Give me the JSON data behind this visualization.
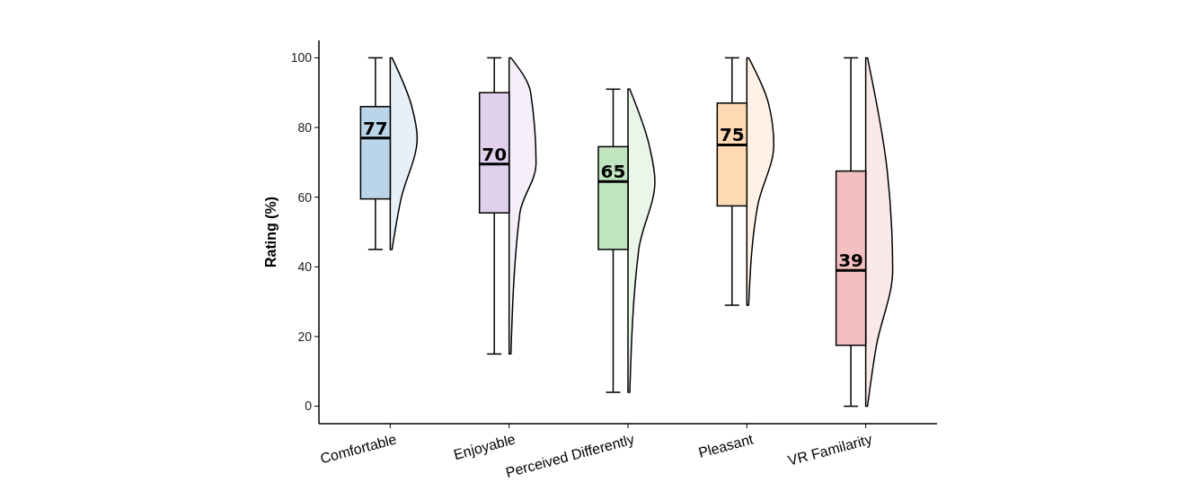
{
  "chart_data": {
    "type": "box",
    "ylabel": "Rating (%)",
    "categories": [
      "Comfortable",
      "Enjoyable",
      "Perceived Differently",
      "Pleasant",
      "VR Familarity"
    ],
    "boxes": [
      {
        "low": 45,
        "q1": 59.5,
        "median": 77,
        "q3": 86,
        "high": 100
      },
      {
        "low": 15,
        "q1": 55.5,
        "median": 69.5,
        "q3": 90,
        "high": 100
      },
      {
        "low": 4,
        "q1": 45,
        "median": 64.5,
        "q3": 74.5,
        "high": 91
      },
      {
        "low": 29,
        "q1": 57.5,
        "median": 75,
        "q3": 87,
        "high": 100
      },
      {
        "low": 0,
        "q1": 17.5,
        "median": 39,
        "q3": 67.5,
        "high": 100
      }
    ],
    "colors": [
      "#bad5ea",
      "#e0d0ec",
      "#c1e4c1",
      "#fed9b3",
      "#f4bfbf"
    ],
    "value_labels": [
      "77",
      "70",
      "65",
      "75",
      "39"
    ],
    "ylim": [
      -5,
      105
    ],
    "yticks": [
      0,
      20,
      40,
      60,
      80,
      100
    ]
  }
}
